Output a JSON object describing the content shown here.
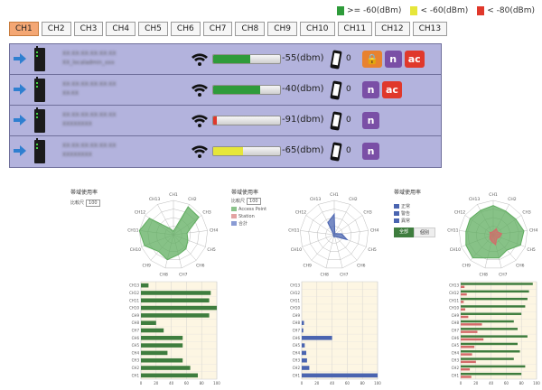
{
  "legend": [
    {
      "label": ">= -60(dBm)",
      "color": "#2e9b3a"
    },
    {
      "label": "< -60(dBm)",
      "color": "#e6e63a"
    },
    {
      "label": "< -80(dBm)",
      "color": "#e0382b"
    }
  ],
  "tabs": [
    "CH1",
    "CH2",
    "CH3",
    "CH4",
    "CH5",
    "CH6",
    "CH7",
    "CH8",
    "CH9",
    "CH10",
    "CH11",
    "CH12",
    "CH13"
  ],
  "active_tab": 0,
  "access_points": [
    {
      "name1": "XX:XX:XX:XX:XX:XX",
      "name2": "XX_localadmin_xxx",
      "signal": "-55(dbm)",
      "level": 0.55,
      "color": "#2e9b3a",
      "clients": "0",
      "badges": [
        "lock",
        "n",
        "ac"
      ]
    },
    {
      "name1": "XX:XX:XX:XX:XX:XX",
      "name2": "XX-XX",
      "signal": "-40(dbm)",
      "level": 0.7,
      "color": "#2e9b3a",
      "clients": "0",
      "badges": [
        "n",
        "ac"
      ]
    },
    {
      "name1": "XX:XX:XX:XX:XX:XX",
      "name2": "XXXXXXXX",
      "signal": "-91(dbm)",
      "level": 0.05,
      "color": "#e0382b",
      "clients": "0",
      "badges": [
        "n"
      ]
    },
    {
      "name1": "XX:XX:XX:XX:XX:XX",
      "name2": "XXXXXXXX",
      "signal": "-65(dbm)",
      "level": 0.45,
      "color": "#e6e63a",
      "clients": "0",
      "badges": [
        "n"
      ]
    }
  ],
  "badge_labels": {
    "n": "n",
    "ac": "ac",
    "lock": "🔒"
  },
  "panels": {
    "p1": {
      "title": "帯域使用率",
      "select_label": "比較尺",
      "select_value": "100"
    },
    "p2": {
      "title": "帯域使用率",
      "select_label": "比較尺",
      "select_value": "100",
      "legend": [
        "Access Point",
        "Station",
        "合計"
      ]
    },
    "p3": {
      "title": "帯域使用率",
      "legend": [
        "正常",
        "警告",
        "異常"
      ],
      "buttons": [
        "全部",
        "個別"
      ]
    }
  },
  "chart_data": [
    {
      "type": "radar",
      "axes": [
        "CH1",
        "CH2",
        "CH3",
        "CH4",
        "CH5",
        "CH6",
        "CH7",
        "CH8",
        "CH9",
        "CH10",
        "CH11",
        "CH12",
        "CH13"
      ],
      "series": [
        {
          "values": [
            10,
            92,
            90,
            40,
            45,
            55,
            60,
            75,
            65,
            90,
            100,
            85,
            20
          ],
          "color": "#5fad5f"
        }
      ]
    },
    {
      "type": "bar",
      "orientation": "horizontal",
      "categories": [
        "CH13",
        "CH12",
        "CH11",
        "CH10",
        "CH9",
        "CH8",
        "CH7",
        "CH6",
        "CH5",
        "CH4",
        "CH3",
        "CH2",
        "CH1"
      ],
      "values": [
        10,
        92,
        90,
        100,
        90,
        20,
        30,
        55,
        55,
        35,
        55,
        65,
        75
      ],
      "xlim": [
        0,
        100
      ],
      "xticks": [
        0,
        20,
        40,
        60,
        80,
        100
      ],
      "color": "#3e7d3e"
    },
    {
      "type": "radar",
      "axes": [
        "CH1",
        "CH2",
        "CH3",
        "CH4",
        "CH5",
        "CH6",
        "CH7",
        "CH8",
        "CH9",
        "CH10",
        "CH11",
        "CH12",
        "CH13"
      ],
      "series": [
        {
          "values": [
            60,
            4,
            6,
            22,
            40,
            8,
            6,
            6,
            4,
            3,
            3,
            3,
            40
          ],
          "color": "#4a64b0"
        }
      ]
    },
    {
      "type": "bar",
      "orientation": "horizontal",
      "categories": [
        "CH13",
        "CH12",
        "CH11",
        "CH10",
        "CH9",
        "CH8",
        "CH7",
        "CH6",
        "CH5",
        "CH4",
        "CH3",
        "CH2",
        "CH1"
      ],
      "values": [
        0,
        0,
        0,
        0,
        0,
        3,
        2,
        40,
        4,
        6,
        7,
        10,
        100
      ],
      "xlim": [
        0,
        100
      ],
      "xticks": [
        0,
        20,
        40,
        60,
        80,
        100
      ],
      "color": "#4a64b0"
    },
    {
      "type": "radar",
      "axes": [
        "CH1",
        "CH2",
        "CH3",
        "CH4",
        "CH5",
        "CH6",
        "CH7",
        "CH8",
        "CH9",
        "CH10",
        "CH11",
        "CH12",
        "CH13"
      ],
      "series": [
        {
          "values": [
            85,
            78,
            80,
            90,
            85,
            60,
            70,
            70,
            90,
            85,
            80,
            82,
            80
          ],
          "color": "#5fad5f"
        },
        {
          "values": [
            10,
            20,
            15,
            25,
            20,
            15,
            30,
            20,
            15,
            10,
            8,
            12,
            8
          ],
          "color": "#d46a6a"
        }
      ]
    },
    {
      "type": "bar",
      "orientation": "horizontal",
      "categories": [
        "CH13",
        "CH12",
        "CH11",
        "CH10",
        "CH9",
        "CH8",
        "CH7",
        "CH6",
        "CH5",
        "CH4",
        "CH3",
        "CH2",
        "CH1"
      ],
      "series": [
        {
          "name": "A",
          "values": [
            95,
            90,
            88,
            85,
            80,
            70,
            75,
            88,
            75,
            78,
            70,
            85,
            80
          ],
          "color": "#3e7d3e"
        },
        {
          "name": "B",
          "values": [
            5,
            8,
            4,
            6,
            10,
            28,
            22,
            30,
            18,
            15,
            20,
            12,
            14
          ],
          "color": "#d46a6a"
        }
      ],
      "xlim": [
        0,
        100
      ],
      "xticks": [
        0,
        20,
        40,
        60,
        80,
        100
      ]
    }
  ]
}
